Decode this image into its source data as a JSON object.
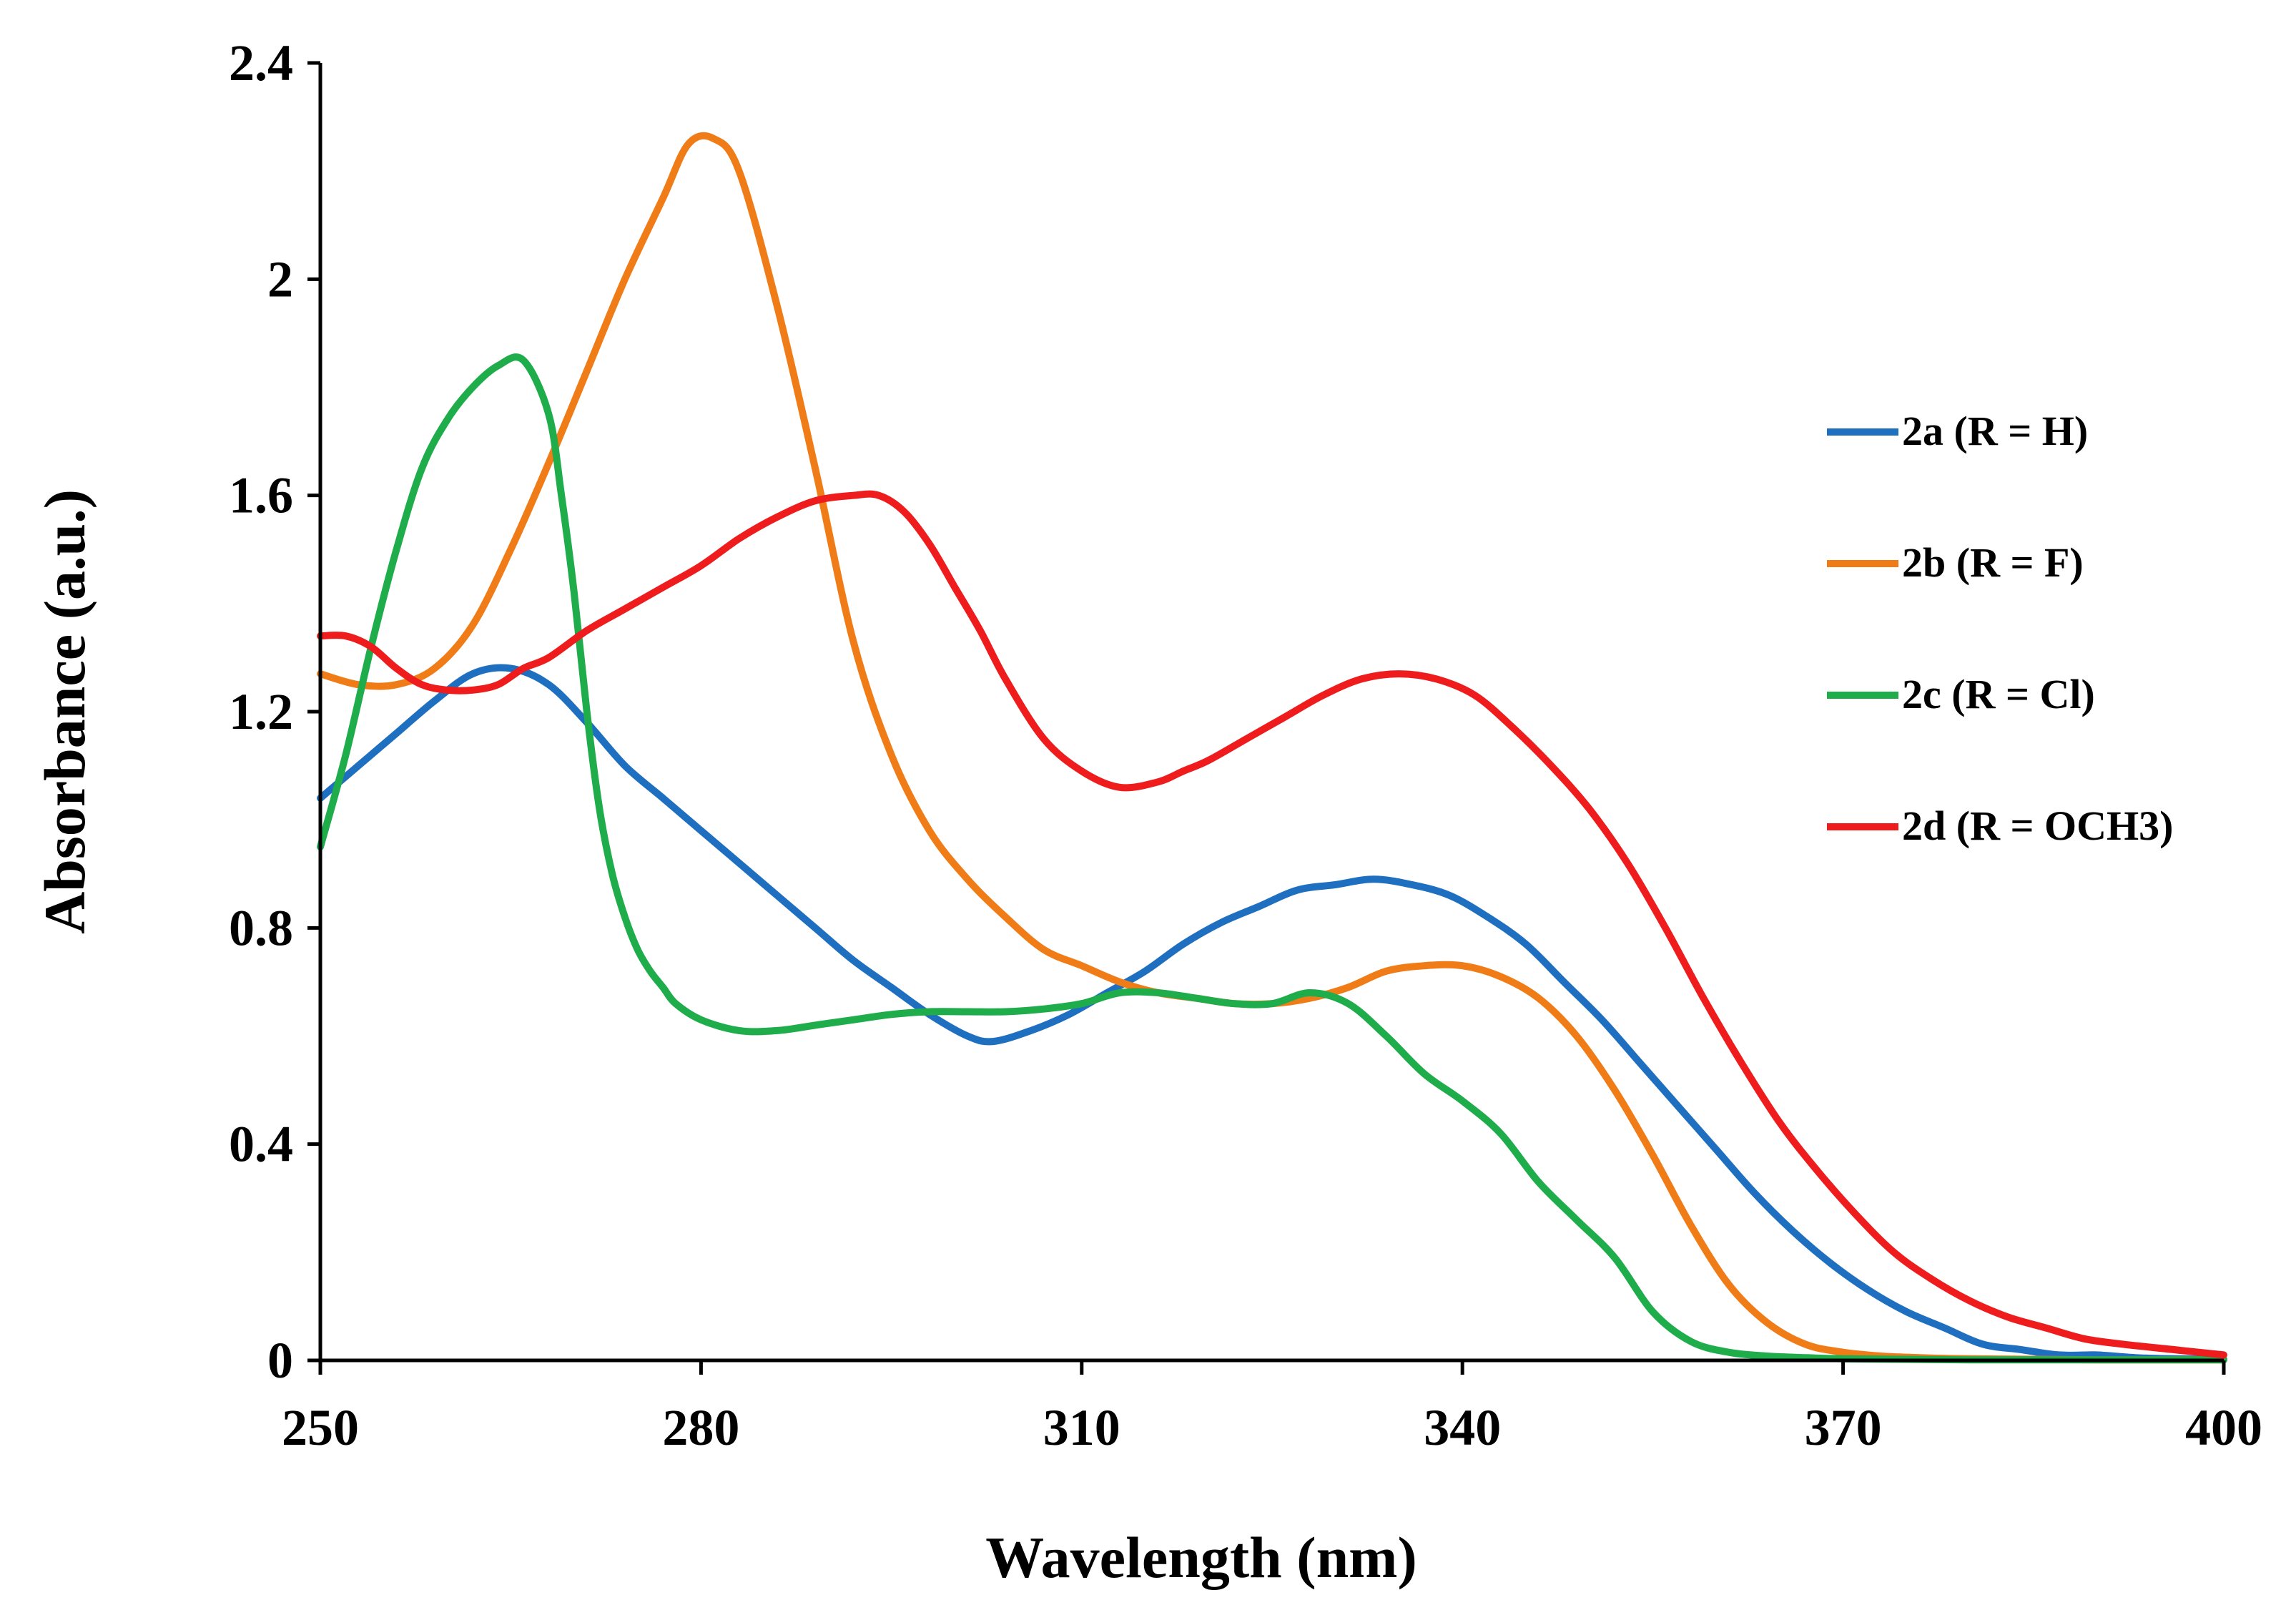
{
  "chart_data": {
    "type": "line",
    "title": "",
    "xlabel": "Wavelength (nm)",
    "ylabel": "Absorbance (a.u.)",
    "xlim": [
      250,
      400
    ],
    "ylim": [
      0,
      2.4
    ],
    "xticks": [
      250,
      280,
      310,
      340,
      370,
      400
    ],
    "yticks": [
      0,
      0.4,
      0.8,
      1.2,
      1.6,
      2,
      2.4
    ],
    "xtick_labels": [
      "250",
      "280",
      "310",
      "340",
      "370",
      "400"
    ],
    "ytick_labels": [
      "0",
      "0.4",
      "0.8",
      "1.2",
      "1.6",
      "2",
      "2.4"
    ],
    "grid": false,
    "legend_position": "right",
    "series": [
      {
        "name": "2a (R = H)",
        "color": "#1F6FC0",
        "x": [
          250,
          253,
          256,
          259,
          262,
          265,
          268,
          271,
          274,
          277,
          280,
          283,
          286,
          289,
          292,
          295,
          298,
          301,
          303,
          306,
          309,
          312,
          315,
          318,
          321,
          324,
          327,
          330,
          333,
          336,
          339,
          342,
          345,
          348,
          351,
          354,
          357,
          360,
          363,
          366,
          369,
          372,
          375,
          378,
          381,
          384,
          387,
          390,
          393,
          396,
          400
        ],
        "y": [
          1.04,
          1.1,
          1.16,
          1.22,
          1.27,
          1.28,
          1.25,
          1.18,
          1.1,
          1.04,
          0.98,
          0.92,
          0.86,
          0.8,
          0.74,
          0.69,
          0.64,
          0.6,
          0.59,
          0.61,
          0.64,
          0.68,
          0.72,
          0.77,
          0.81,
          0.84,
          0.87,
          0.88,
          0.89,
          0.88,
          0.86,
          0.82,
          0.77,
          0.7,
          0.63,
          0.55,
          0.47,
          0.39,
          0.31,
          0.24,
          0.18,
          0.13,
          0.09,
          0.06,
          0.03,
          0.02,
          0.01,
          0.01,
          0.005,
          0.003,
          0.002
        ]
      },
      {
        "name": "2b (R = F)",
        "color": "#F07C18",
        "x": [
          250,
          253,
          256,
          259,
          262,
          265,
          268,
          271,
          274,
          277,
          279,
          281,
          283,
          286,
          289,
          292,
          295,
          298,
          301,
          304,
          307,
          310,
          313,
          316,
          319,
          322,
          325,
          328,
          331,
          334,
          337,
          340,
          343,
          346,
          349,
          352,
          355,
          358,
          361,
          364,
          367,
          370,
          373,
          376,
          380,
          385,
          390,
          400
        ],
        "y": [
          1.27,
          1.25,
          1.25,
          1.28,
          1.36,
          1.5,
          1.66,
          1.83,
          2.0,
          2.15,
          2.25,
          2.26,
          2.2,
          1.95,
          1.65,
          1.33,
          1.12,
          0.98,
          0.89,
          0.82,
          0.76,
          0.73,
          0.7,
          0.68,
          0.67,
          0.66,
          0.66,
          0.67,
          0.69,
          0.72,
          0.73,
          0.73,
          0.71,
          0.67,
          0.6,
          0.5,
          0.38,
          0.25,
          0.14,
          0.07,
          0.03,
          0.015,
          0.008,
          0.005,
          0.003,
          0.002,
          0.001,
          0.001
        ]
      },
      {
        "name": "2c (R = Cl)",
        "color": "#1FAD4B",
        "x": [
          250,
          252,
          254,
          256,
          258,
          260,
          262,
          264,
          266,
          268,
          269,
          270,
          271,
          272,
          273,
          274,
          275,
          276,
          277,
          278,
          280,
          283,
          286,
          289,
          292,
          295,
          298,
          301,
          304,
          307,
          310,
          313,
          316,
          319,
          322,
          325,
          328,
          331,
          334,
          337,
          340,
          343,
          346,
          349,
          352,
          355,
          358,
          361,
          364,
          367,
          370,
          375,
          380,
          390,
          400
        ],
        "y": [
          0.95,
          1.12,
          1.32,
          1.5,
          1.65,
          1.74,
          1.8,
          1.84,
          1.85,
          1.75,
          1.6,
          1.42,
          1.2,
          1.02,
          0.9,
          0.82,
          0.76,
          0.72,
          0.69,
          0.66,
          0.63,
          0.61,
          0.61,
          0.62,
          0.63,
          0.64,
          0.645,
          0.645,
          0.645,
          0.65,
          0.66,
          0.68,
          0.68,
          0.67,
          0.66,
          0.66,
          0.68,
          0.66,
          0.6,
          0.53,
          0.48,
          0.42,
          0.33,
          0.26,
          0.19,
          0.09,
          0.035,
          0.015,
          0.008,
          0.005,
          0.003,
          0.002,
          0.001,
          0.001,
          0.001
        ]
      },
      {
        "name": "2d (R = OCH3)",
        "color": "#EE1C1C",
        "x": [
          250,
          252,
          254,
          256,
          258,
          260,
          262,
          264,
          266,
          268,
          271,
          274,
          277,
          280,
          283,
          286,
          289,
          292,
          294,
          296,
          298,
          300,
          302,
          304,
          307,
          310,
          313,
          316,
          318,
          320,
          323,
          326,
          329,
          332,
          335,
          338,
          341,
          344,
          347,
          350,
          353,
          356,
          359,
          362,
          365,
          368,
          371,
          374,
          377,
          380,
          383,
          386,
          389,
          392,
          396,
          400
        ],
        "y": [
          1.34,
          1.34,
          1.32,
          1.28,
          1.25,
          1.24,
          1.24,
          1.25,
          1.28,
          1.3,
          1.35,
          1.39,
          1.43,
          1.47,
          1.52,
          1.56,
          1.59,
          1.6,
          1.6,
          1.57,
          1.51,
          1.43,
          1.35,
          1.26,
          1.15,
          1.09,
          1.06,
          1.07,
          1.09,
          1.11,
          1.15,
          1.19,
          1.23,
          1.26,
          1.27,
          1.26,
          1.23,
          1.17,
          1.1,
          1.02,
          0.92,
          0.8,
          0.67,
          0.55,
          0.44,
          0.35,
          0.27,
          0.2,
          0.15,
          0.11,
          0.08,
          0.06,
          0.04,
          0.03,
          0.02,
          0.01
        ]
      }
    ]
  }
}
